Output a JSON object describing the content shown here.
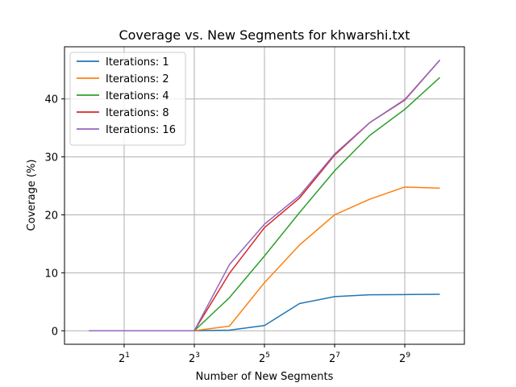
{
  "chart_data": {
    "type": "line",
    "title": "Coverage vs. New Segments for khwarshi.txt",
    "xlabel": "Number of New Segments",
    "ylabel": "Coverage (%)",
    "x_scale": "log2",
    "x": [
      1,
      2,
      4,
      8,
      16,
      32,
      64,
      128,
      256,
      512,
      1024
    ],
    "xticks": [
      {
        "value": 2,
        "base": "2",
        "exp": "1"
      },
      {
        "value": 8,
        "base": "2",
        "exp": "3"
      },
      {
        "value": 32,
        "base": "2",
        "exp": "5"
      },
      {
        "value": 128,
        "base": "2",
        "exp": "7"
      },
      {
        "value": 512,
        "base": "2",
        "exp": "9"
      }
    ],
    "yticks": [
      0,
      10,
      20,
      30,
      40
    ],
    "xlim": [
      0.6156,
      1663
    ],
    "ylim": [
      -2.33,
      49.0
    ],
    "grid": true,
    "legend_position": "upper-left",
    "series": [
      {
        "name": "Iterations: 1",
        "color": "#1f77b4",
        "values": [
          0,
          0,
          0,
          0,
          0.1,
          0.9,
          4.7,
          5.9,
          6.2,
          6.25,
          6.3
        ]
      },
      {
        "name": "Iterations: 2",
        "color": "#ff7f0e",
        "values": [
          0,
          0,
          0,
          0,
          0.8,
          8.3,
          14.8,
          20.0,
          22.7,
          24.8,
          24.6
        ]
      },
      {
        "name": "Iterations: 4",
        "color": "#2ca02c",
        "values": [
          0,
          0,
          0,
          0,
          5.7,
          12.9,
          20.4,
          27.6,
          33.7,
          38.2,
          43.7
        ]
      },
      {
        "name": "Iterations: 8",
        "color": "#d62728",
        "values": [
          0,
          0,
          0,
          0,
          9.9,
          17.8,
          22.9,
          30.3,
          35.9,
          39.8,
          46.7
        ]
      },
      {
        "name": "Iterations: 16",
        "color": "#9467bd",
        "values": [
          0,
          0,
          0,
          0,
          11.4,
          18.4,
          23.3,
          30.5,
          35.9,
          39.9,
          46.7
        ]
      }
    ]
  }
}
